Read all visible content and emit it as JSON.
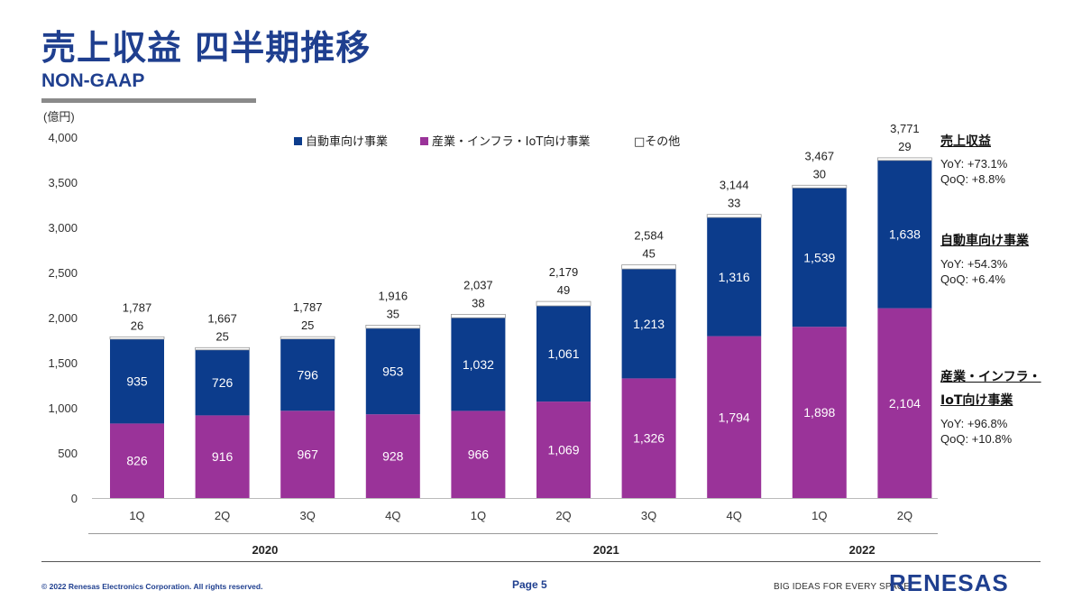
{
  "header": {
    "title": "売上収益 四半期推移",
    "subtitle": "NON-GAAP"
  },
  "chart_data": {
    "type": "bar",
    "stacked": true,
    "unit_label": "(億円)",
    "ylim": [
      0,
      4000
    ],
    "yticks": [
      "0",
      "500",
      "1,000",
      "1,500",
      "2,000",
      "2,500",
      "3,000",
      "3,500",
      "4,000"
    ],
    "categories": [
      "1Q",
      "2Q",
      "3Q",
      "4Q",
      "1Q",
      "2Q",
      "3Q",
      "4Q",
      "1Q",
      "2Q"
    ],
    "year_groups": [
      {
        "label": "2020",
        "count": 4
      },
      {
        "label": "2021",
        "count": 4
      },
      {
        "label": "2022",
        "count": 2
      }
    ],
    "series": [
      {
        "name": "産業・インフラ・IoT向け事業",
        "color": "#9a3399",
        "values": [
          826,
          916,
          967,
          928,
          966,
          1069,
          1326,
          1794,
          1898,
          2104
        ],
        "labels": [
          "826",
          "916",
          "967",
          "928",
          "966",
          "1,069",
          "1,326",
          "1,794",
          "1,898",
          "2,104"
        ]
      },
      {
        "name": "自動車向け事業",
        "color": "#0c3c8c",
        "values": [
          935,
          726,
          796,
          953,
          1032,
          1061,
          1213,
          1316,
          1539,
          1638
        ],
        "labels": [
          "935",
          "726",
          "796",
          "953",
          "1,032",
          "1,061",
          "1,213",
          "1,316",
          "1,539",
          "1,638"
        ]
      },
      {
        "name": "その他",
        "color": "#ffffff",
        "values": [
          26,
          25,
          25,
          35,
          38,
          49,
          45,
          33,
          30,
          29
        ],
        "labels": [
          "26",
          "25",
          "25",
          "35",
          "38",
          "49",
          "45",
          "33",
          "30",
          "29"
        ]
      }
    ],
    "totals": [
      "1,787",
      "1,667",
      "1,787",
      "1,916",
      "2,037",
      "2,179",
      "2,584",
      "3,144",
      "3,467",
      "3,771"
    ],
    "legend": {
      "position": "top",
      "items": [
        "自動車向け事業",
        "産業・インフラ・IoT向け事業",
        "□その他"
      ]
    },
    "grid": false
  },
  "summary": {
    "total": {
      "heading": "売上収益",
      "yoy": "YoY: +73.1%",
      "qoq": "QoQ: +8.8%"
    },
    "auto": {
      "heading": "自動車向け事業",
      "yoy": "YoY: +54.3%",
      "qoq": "QoQ: +6.4%"
    },
    "iiot": {
      "heading_line1": "産業・インフラ・",
      "heading_line2": "IoT向け事業",
      "yoy": "YoY: +96.8%",
      "qoq": "QoQ: +10.8%"
    }
  },
  "footer": {
    "copyright": "© 2022 Renesas Electronics Corporation. All rights reserved.",
    "page": "Page 5",
    "tagline": "BIG IDEAS FOR EVERY SPACE",
    "logo": "RENESAS"
  },
  "colors": {
    "brand": "#1f3f8f",
    "auto": "#0c3c8c",
    "iiot": "#9a3399"
  }
}
